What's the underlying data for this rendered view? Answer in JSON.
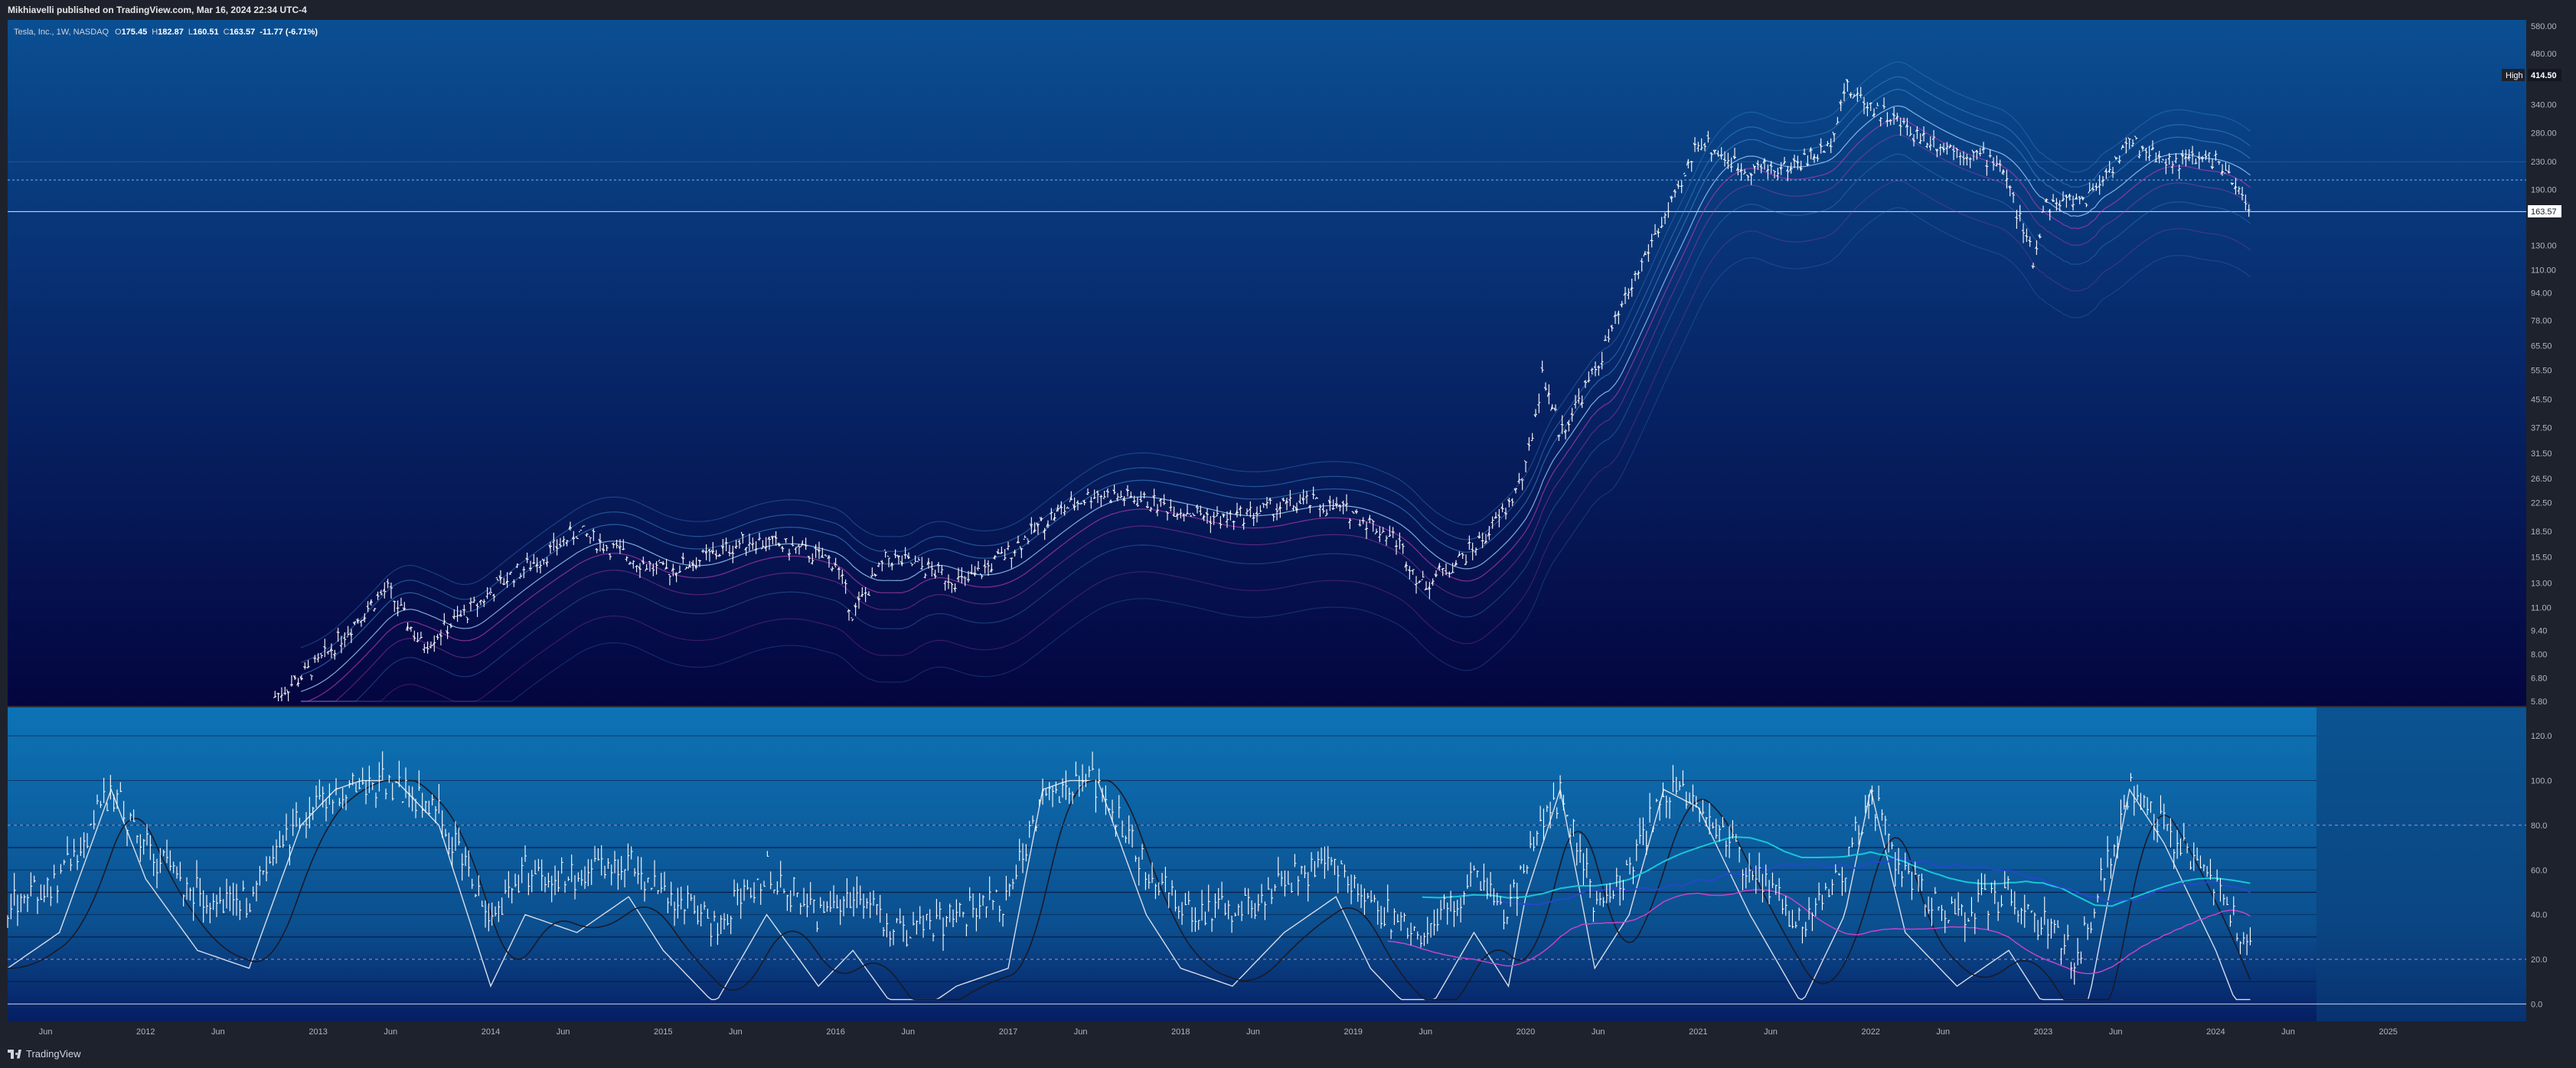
{
  "header": {
    "publisher_line": "Mikhiavelli published on TradingView.com, Mar 16, 2024 22:34 UTC-4"
  },
  "legend": {
    "symbol": "Tesla, Inc., 1W, NASDAQ",
    "open_label": "O",
    "open": "175.45",
    "high_label": "H",
    "high": "182.87",
    "low_label": "L",
    "low": "160.51",
    "close_label": "C",
    "close": "163.57",
    "change": "-11.77 (-6.71%)"
  },
  "price_badges": {
    "high_label": "High",
    "high_value": "414.50",
    "last_value": "163.57"
  },
  "footer": {
    "brand": "TradingView"
  },
  "colors": {
    "background_top": "#0a4d8f",
    "background_bottom": "#04063f",
    "price_bars": "#ffffff",
    "bands_blue": "#3e8fd6",
    "bands_magenta": "#b83bb5",
    "osc_cyan": "#19c6d9",
    "osc_blue": "#2448c8",
    "osc_magenta": "#cc44cc"
  },
  "chart_data": [
    {
      "type": "line",
      "name": "price_panel",
      "scale": "log",
      "y_ticks": [
        "580.00",
        "480.00",
        "414.50",
        "340.00",
        "280.00",
        "230.00",
        "190.00",
        "163.57",
        "130.00",
        "110.00",
        "94.00",
        "78.00",
        "65.50",
        "55.50",
        "45.50",
        "37.50",
        "31.50",
        "26.50",
        "22.50",
        "18.50",
        "15.50",
        "13.00",
        "11.00",
        "9.40",
        "8.00",
        "6.80",
        "5.80"
      ],
      "y_tick_values": [
        580,
        480,
        414.5,
        340,
        280,
        230,
        190,
        163.57,
        130,
        110,
        94,
        78,
        65.5,
        55.5,
        45.5,
        37.5,
        31.5,
        26.5,
        22.5,
        18.5,
        15.5,
        13,
        11,
        9.4,
        8,
        6.8,
        5.8
      ],
      "ylim": [
        5.8,
        580
      ],
      "reference_lines": {
        "high": 414.5,
        "last": 163.57,
        "dotted": 203
      },
      "bars_x": [
        2012.75,
        2013.0,
        2013.25,
        2013.4,
        2013.6,
        2013.9,
        2014.1,
        2014.3,
        2014.5,
        2014.75,
        2015.0,
        2015.25,
        2015.5,
        2015.75,
        2016.0,
        2016.1,
        2016.3,
        2016.5,
        2016.75,
        2017.0,
        2017.25,
        2017.5,
        2017.75,
        2018.0,
        2018.25,
        2018.5,
        2018.75,
        2019.0,
        2019.25,
        2019.4,
        2019.6,
        2019.75,
        2019.9,
        2020.0,
        2020.1,
        2020.2,
        2020.4,
        2020.6,
        2020.75,
        2020.9,
        2021.0,
        2021.25,
        2021.5,
        2021.75,
        2021.85,
        2022.0,
        2022.25,
        2022.5,
        2022.75,
        2022.95,
        2023.0,
        2023.25,
        2023.5,
        2023.75,
        2024.0,
        2024.2
      ],
      "bars_y": [
        6.0,
        7.5,
        10.5,
        12.5,
        8.5,
        11.0,
        13.5,
        15.5,
        18.5,
        16.0,
        14.0,
        15.5,
        17.5,
        16.5,
        15.0,
        10.5,
        15.5,
        14.5,
        13.0,
        16.0,
        20.5,
        24.0,
        23.0,
        21.5,
        20.0,
        21.5,
        22.5,
        21.0,
        17.5,
        12.8,
        15.0,
        17.5,
        22.0,
        28.0,
        55.0,
        36.0,
        55.0,
        95.0,
        140.0,
        190.0,
        270.0,
        220.0,
        220.0,
        250.0,
        380.0,
        340.0,
        280.0,
        250.0,
        230.0,
        115.0,
        170.0,
        180.0,
        260.0,
        230.0,
        235.0,
        163.57
      ]
    },
    {
      "type": "line",
      "name": "oscillator_panel",
      "y_ticks": [
        "120.0",
        "100.0",
        "80.0",
        "60.0",
        "40.0",
        "20.0",
        "0.0"
      ],
      "y_tick_values": [
        120,
        100,
        80,
        60,
        40,
        20,
        0
      ],
      "ylim": [
        -5,
        130
      ],
      "levels": [
        80,
        20
      ],
      "x_tick_labels": [
        "Jun",
        "2012",
        "Jun",
        "2013",
        "Jun",
        "2014",
        "Jun",
        "2015",
        "Jun",
        "2016",
        "Jun",
        "2017",
        "Jun",
        "2018",
        "Jun",
        "2019",
        "Jun",
        "2020",
        "Jun",
        "2021",
        "Jun",
        "2022",
        "Jun",
        "2023",
        "Jun",
        "2024",
        "Jun",
        "2025"
      ],
      "x_tick_values": [
        2011.42,
        2012.0,
        2012.42,
        2013.0,
        2013.42,
        2014.0,
        2014.42,
        2015.0,
        2015.42,
        2016.0,
        2016.42,
        2017.0,
        2017.42,
        2018.0,
        2018.42,
        2019.0,
        2019.42,
        2020.0,
        2020.42,
        2021.0,
        2021.42,
        2022.0,
        2022.42,
        2023.0,
        2023.42,
        2024.0,
        2024.42,
        2025.0
      ],
      "xlim": [
        2011.2,
        2025.8
      ],
      "bars_x": [
        2011.2,
        2011.5,
        2011.8,
        2012.0,
        2012.3,
        2012.6,
        2012.9,
        2013.1,
        2013.4,
        2013.7,
        2014.0,
        2014.2,
        2014.5,
        2014.8,
        2015.0,
        2015.3,
        2015.6,
        2015.9,
        2016.1,
        2016.4,
        2016.7,
        2017.0,
        2017.2,
        2017.5,
        2017.8,
        2018.0,
        2018.3,
        2018.6,
        2018.9,
        2019.1,
        2019.4,
        2019.7,
        2019.9,
        2020.0,
        2020.2,
        2020.4,
        2020.6,
        2020.8,
        2021.0,
        2021.3,
        2021.6,
        2021.85,
        2022.0,
        2022.2,
        2022.5,
        2022.8,
        2023.0,
        2023.2,
        2023.5,
        2023.7,
        2024.0,
        2024.2
      ],
      "bars_y": [
        45,
        55,
        95,
        70,
        50,
        45,
        85,
        95,
        100,
        85,
        40,
        60,
        55,
        65,
        50,
        35,
        60,
        40,
        50,
        30,
        40,
        45,
        95,
        100,
        60,
        45,
        40,
        55,
        65,
        45,
        30,
        55,
        40,
        65,
        95,
        45,
        60,
        95,
        90,
        60,
        35,
        60,
        95,
        55,
        40,
        50,
        35,
        20,
        95,
        80,
        50,
        25
      ]
    }
  ]
}
